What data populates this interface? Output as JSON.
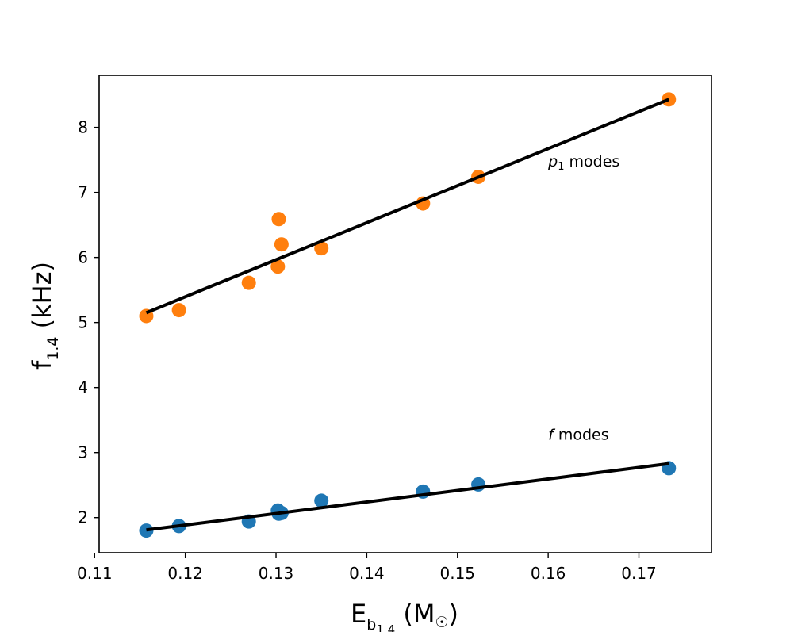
{
  "chart_data": {
    "type": "scatter",
    "xlim": [
      0.1105,
      0.178
    ],
    "ylim": [
      1.46,
      8.8
    ],
    "x_ticks": [
      0.11,
      0.12,
      0.13,
      0.14,
      0.15,
      0.16,
      0.17
    ],
    "x_tick_labels": [
      "0.11",
      "0.12",
      "0.13",
      "0.14",
      "0.15",
      "0.16",
      "0.17"
    ],
    "y_ticks": [
      2,
      3,
      4,
      5,
      6,
      7,
      8
    ],
    "y_tick_labels": [
      "2",
      "3",
      "4",
      "5",
      "6",
      "7",
      "8"
    ],
    "xlabel": {
      "main": "E",
      "sub": "b",
      "subsub": "1.4",
      "unit": " (M",
      "unit_sub": "☉",
      "close": ")"
    },
    "ylabel": {
      "main": "f",
      "sub": "1.4",
      "unit": " (kHz)"
    },
    "grid": false,
    "series": [
      {
        "name": "p1 modes",
        "color": "#ff7f0e",
        "x": [
          0.1157,
          0.1193,
          0.127,
          0.1302,
          0.1303,
          0.1306,
          0.135,
          0.1462,
          0.1523,
          0.1733
        ],
        "y": [
          5.1,
          5.19,
          5.61,
          5.86,
          6.59,
          6.2,
          6.14,
          6.83,
          7.24,
          8.43
        ],
        "fit": {
          "x": [
            0.1157,
            0.1733
          ],
          "y": [
            5.15,
            8.43
          ]
        }
      },
      {
        "name": "f modes",
        "color": "#1f77b4",
        "x": [
          0.1157,
          0.1193,
          0.127,
          0.1302,
          0.1303,
          0.1306,
          0.135,
          0.1462,
          0.1523,
          0.1733
        ],
        "y": [
          1.8,
          1.87,
          1.94,
          2.11,
          2.06,
          2.07,
          2.26,
          2.4,
          2.51,
          2.76
        ],
        "fit": {
          "x": [
            0.1157,
            0.1733
          ],
          "y": [
            1.81,
            2.83
          ]
        }
      }
    ],
    "fit_color": "#000000",
    "annotations": [
      {
        "id": "p1",
        "italic": "p",
        "sub": "1",
        "rest": " modes",
        "x": 0.16,
        "y": 7.4
      },
      {
        "id": "f",
        "italic": "f",
        "sub": "",
        "rest": " modes",
        "x": 0.16,
        "y": 3.2
      }
    ]
  }
}
